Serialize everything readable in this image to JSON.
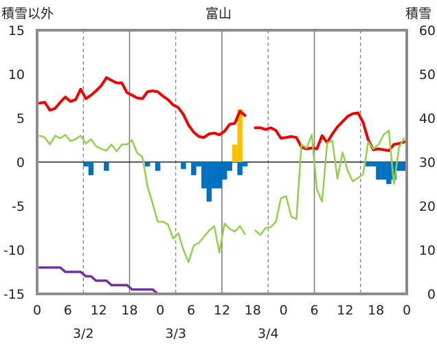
{
  "chart_data": {
    "type": "line",
    "title": "富山",
    "left_axis_label": "積雪以外",
    "right_axis_label": "積雪",
    "left_ylim": [
      -15,
      15
    ],
    "left_ticks": [
      "15",
      "10",
      "5",
      "0",
      "-5",
      "-10",
      "-15"
    ],
    "right_ylim": [
      0,
      60
    ],
    "right_ticks": [
      "60",
      "50",
      "40",
      "30",
      "20",
      "10",
      "0"
    ],
    "x_tick_labels": [
      "0",
      "6",
      "12",
      "18",
      "0",
      "6",
      "12",
      "18",
      "0",
      "6",
      "12",
      "18",
      "0"
    ],
    "day_labels": [
      "3/2",
      "3/3",
      "3/4"
    ],
    "grid": true,
    "series": [
      {
        "axis": "left",
        "color": "#ee0000",
        "points": [
          [
            0,
            6.7
          ],
          [
            1,
            6.8
          ],
          [
            2,
            5.9
          ],
          [
            3,
            6.1
          ],
          [
            4,
            6.8
          ],
          [
            5,
            7.4
          ],
          [
            6,
            6.9
          ],
          [
            7,
            7.1
          ],
          [
            8,
            8.3
          ],
          [
            9,
            7.2
          ],
          [
            10,
            7.6
          ],
          [
            11,
            8.1
          ],
          [
            12,
            8.7
          ],
          [
            13,
            9.6
          ],
          [
            14,
            9.3
          ],
          [
            15,
            9.0
          ],
          [
            16,
            9.0
          ],
          [
            17,
            7.9
          ],
          [
            18,
            7.6
          ],
          [
            19,
            7.3
          ],
          [
            20,
            7.2
          ],
          [
            21,
            8.0
          ],
          [
            22,
            8.1
          ],
          [
            23,
            8.0
          ],
          [
            24,
            7.5
          ],
          [
            25,
            7.1
          ],
          [
            26,
            6.5
          ],
          [
            27,
            6.2
          ],
          [
            28,
            5.4
          ],
          [
            29,
            4.2
          ],
          [
            30,
            3.4
          ],
          [
            31,
            2.9
          ],
          [
            32,
            2.8
          ],
          [
            33,
            3.2
          ],
          [
            34,
            3.3
          ],
          [
            35,
            3.1
          ],
          [
            36,
            3.5
          ],
          [
            37,
            4.3
          ],
          [
            38,
            4.4
          ],
          [
            39,
            5.8
          ],
          [
            40,
            5.3
          ],
          [
            null,
            null
          ],
          [
            42,
            3.9
          ],
          [
            43,
            3.9
          ],
          [
            44,
            3.7
          ],
          [
            45,
            3.9
          ],
          [
            46,
            3.6
          ],
          [
            47,
            2.7
          ],
          [
            48,
            2.8
          ],
          [
            49,
            2.9
          ],
          [
            50,
            2.8
          ],
          [
            51,
            1.7
          ],
          [
            52,
            1.5
          ],
          [
            53,
            1.6
          ],
          [
            54,
            1.5
          ],
          [
            55,
            3.0
          ],
          [
            56,
            2.2
          ],
          [
            57,
            3.2
          ],
          [
            58,
            4.0
          ],
          [
            59,
            4.6
          ],
          [
            60,
            5.2
          ],
          [
            61,
            5.5
          ],
          [
            62,
            5.6
          ],
          [
            63,
            4.5
          ],
          [
            64,
            2.5
          ],
          [
            65,
            1.4
          ],
          [
            66,
            1.5
          ],
          [
            67,
            1.4
          ],
          [
            68,
            1.3
          ],
          [
            69,
            2.0
          ],
          [
            70,
            2.1
          ],
          [
            71,
            2.3
          ]
        ]
      },
      {
        "axis": "left",
        "color": "#8fd04d",
        "points": [
          [
            0,
            3.0
          ],
          [
            1,
            2.8
          ],
          [
            2,
            2.0
          ],
          [
            3,
            3.0
          ],
          [
            4,
            2.7
          ],
          [
            5,
            3.1
          ],
          [
            6,
            2.4
          ],
          [
            7,
            2.6
          ],
          [
            8,
            3.0
          ],
          [
            9,
            2.1
          ],
          [
            10,
            2.6
          ],
          [
            11,
            1.8
          ],
          [
            12,
            1.5
          ],
          [
            13,
            1.3
          ],
          [
            14,
            2.0
          ],
          [
            15,
            1.2
          ],
          [
            16,
            2.0
          ],
          [
            17,
            2.0
          ],
          [
            18,
            2.5
          ],
          [
            19,
            1.0
          ],
          [
            20,
            0.6
          ],
          [
            21,
            -2.8
          ],
          [
            22,
            -4.7
          ],
          [
            23,
            -6.8
          ],
          [
            24,
            -6.8
          ],
          [
            25,
            -7.1
          ],
          [
            26,
            -8.7
          ],
          [
            27,
            -8.1
          ],
          [
            28,
            -10.0
          ],
          [
            29,
            -11.4
          ],
          [
            30,
            -9.5
          ],
          [
            31,
            -9.2
          ],
          [
            32,
            -8.5
          ],
          [
            33,
            -7.8
          ],
          [
            34,
            -7.3
          ],
          [
            35,
            -10.3
          ],
          [
            36,
            -7.0
          ],
          [
            37,
            -7.6
          ],
          [
            38,
            -7.9
          ],
          [
            39,
            -7.3
          ],
          [
            40,
            -8.2
          ],
          [
            null,
            null
          ],
          [
            42,
            -7.8
          ],
          [
            43,
            -8.3
          ],
          [
            44,
            -7.5
          ],
          [
            45,
            -7.4
          ],
          [
            46,
            -6.8
          ],
          [
            47,
            -4.1
          ],
          [
            48,
            -3.9
          ],
          [
            49,
            -6.2
          ],
          [
            50,
            -6.5
          ],
          [
            51,
            2.0
          ],
          [
            52,
            1.6
          ],
          [
            53,
            3.1
          ],
          [
            54,
            -3.1
          ],
          [
            55,
            -4.5
          ],
          [
            56,
            2.2
          ],
          [
            57,
            2.4
          ],
          [
            58,
            -1.9
          ],
          [
            59,
            1.1
          ],
          [
            60,
            -1.0
          ],
          [
            61,
            -2.2
          ],
          [
            62,
            -1.8
          ],
          [
            63,
            -1.4
          ],
          [
            64,
            2.3
          ],
          [
            65,
            1.5
          ],
          [
            66,
            2.0
          ],
          [
            67,
            3.1
          ],
          [
            68,
            3.6
          ],
          [
            69,
            -2.5
          ],
          [
            70,
            1.7
          ],
          [
            71,
            2.7
          ]
        ]
      },
      {
        "axis": "right",
        "color": "#7030a0",
        "points": [
          [
            0,
            6
          ],
          [
            1,
            6
          ],
          [
            2,
            6
          ],
          [
            3,
            6
          ],
          [
            4,
            6
          ],
          [
            5,
            5
          ],
          [
            6,
            5
          ],
          [
            7,
            5
          ],
          [
            8,
            5
          ],
          [
            9,
            4
          ],
          [
            10,
            4
          ],
          [
            11,
            3
          ],
          [
            12,
            3
          ],
          [
            13,
            3
          ],
          [
            14,
            2
          ],
          [
            15,
            2
          ],
          [
            16,
            2
          ],
          [
            17,
            2
          ],
          [
            18,
            1
          ],
          [
            19,
            1
          ],
          [
            20,
            1
          ],
          [
            21,
            1
          ],
          [
            22,
            1
          ],
          [
            23,
            0
          ],
          [
            24,
            0
          ],
          [
            25,
            0
          ],
          [
            26,
            0
          ],
          [
            27,
            0
          ],
          [
            28,
            0
          ],
          [
            29,
            0
          ],
          [
            30,
            0
          ],
          [
            31,
            0
          ],
          [
            32,
            0
          ],
          [
            33,
            0
          ],
          [
            34,
            0
          ],
          [
            35,
            0
          ],
          [
            36,
            0
          ],
          [
            37,
            0
          ],
          [
            38,
            0
          ],
          [
            39,
            0
          ],
          [
            40,
            0
          ],
          [
            41,
            0
          ],
          [
            42,
            0
          ],
          [
            43,
            0
          ],
          [
            44,
            0
          ],
          [
            45,
            0
          ],
          [
            46,
            0
          ],
          [
            47,
            0
          ],
          [
            48,
            0
          ],
          [
            49,
            0
          ],
          [
            50,
            0
          ],
          [
            51,
            0
          ],
          [
            52,
            0
          ],
          [
            53,
            0
          ],
          [
            54,
            0
          ],
          [
            55,
            0
          ],
          [
            56,
            0
          ],
          [
            57,
            0
          ],
          [
            58,
            0
          ],
          [
            59,
            0
          ],
          [
            60,
            0
          ],
          [
            61,
            0
          ],
          [
            62,
            0
          ],
          [
            63,
            0
          ],
          [
            64,
            0
          ],
          [
            65,
            0
          ],
          [
            66,
            0
          ],
          [
            67,
            0
          ],
          [
            68,
            0
          ],
          [
            69,
            0
          ],
          [
            70,
            0
          ],
          [
            71,
            0
          ]
        ]
      }
    ],
    "bars_negative": {
      "color": "#0070c0",
      "axis": "left",
      "points": [
        [
          9,
          -0.5
        ],
        [
          10,
          -1.5
        ],
        [
          13,
          -1.0
        ],
        [
          21,
          -0.5
        ],
        [
          23,
          -1.0
        ],
        [
          28,
          -0.8
        ],
        [
          30,
          -1.5
        ],
        [
          31,
          -0.5
        ],
        [
          32,
          -3.0
        ],
        [
          33,
          -4.5
        ],
        [
          34,
          -3.0
        ],
        [
          35,
          -3.0
        ],
        [
          36,
          -2.0
        ],
        [
          37,
          -1.0
        ],
        [
          39,
          -1.5
        ],
        [
          40,
          -0.5
        ],
        [
          64,
          -0.5
        ],
        [
          65,
          -0.5
        ],
        [
          66,
          -2.0
        ],
        [
          67,
          -2.0
        ],
        [
          68,
          -2.5
        ],
        [
          69,
          -2.0
        ],
        [
          70,
          -1.0
        ],
        [
          71,
          -1.0
        ]
      ]
    },
    "bars_positive": {
      "color": "#ffc000",
      "axis": "left",
      "points": [
        [
          38,
          2.0
        ],
        [
          39,
          6.0
        ]
      ]
    }
  }
}
